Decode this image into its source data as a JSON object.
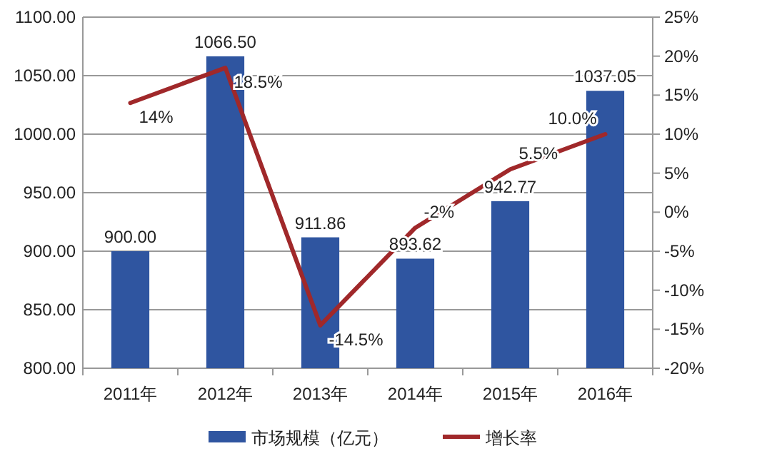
{
  "chart_data": {
    "type": "bar",
    "categories": [
      "2011年",
      "2012年",
      "2013年",
      "2014年",
      "2015年",
      "2016年"
    ],
    "series": [
      {
        "name": "市场规模（亿元）",
        "color": "#2f55a0",
        "values": [
          900.0,
          1066.5,
          911.86,
          893.62,
          942.77,
          1037.05
        ],
        "value_labels": [
          "900.00",
          "1066.50",
          "911.86",
          "893.62",
          "942.77",
          "1037.05"
        ]
      },
      {
        "name": "增长率",
        "type": "line",
        "axis": "y2",
        "color": "#a0282a",
        "values": [
          14,
          18.5,
          -14.5,
          -2,
          5.5,
          10.0
        ],
        "value_labels": [
          "14%",
          "18.5%",
          "-14.5%",
          "-2%",
          "5.5%",
          "10.0%"
        ]
      }
    ],
    "ylim": [
      800,
      1100
    ],
    "yticks": [
      {
        "value": 800,
        "label": "800.00"
      },
      {
        "value": 850,
        "label": "850.00"
      },
      {
        "value": 900,
        "label": "900.00"
      },
      {
        "value": 950,
        "label": "950.00"
      },
      {
        "value": 1000,
        "label": "1000.00"
      },
      {
        "value": 1050,
        "label": "1050.00"
      },
      {
        "value": 1100,
        "label": "1100.00"
      }
    ],
    "y2lim": [
      -20,
      25
    ],
    "y2ticks": [
      {
        "value": -20,
        "label": "-20%"
      },
      {
        "value": -15,
        "label": "-15%"
      },
      {
        "value": -10,
        "label": "-10%"
      },
      {
        "value": -5,
        "label": "-5%"
      },
      {
        "value": 0,
        "label": "0%"
      },
      {
        "value": 5,
        "label": "5%"
      },
      {
        "value": 10,
        "label": "10%"
      },
      {
        "value": 15,
        "label": "15%"
      },
      {
        "value": 20,
        "label": "20%"
      },
      {
        "value": 25,
        "label": "25%"
      }
    ],
    "grid": "y",
    "legend": "bottom",
    "marker": "none",
    "line_style": "solid"
  }
}
